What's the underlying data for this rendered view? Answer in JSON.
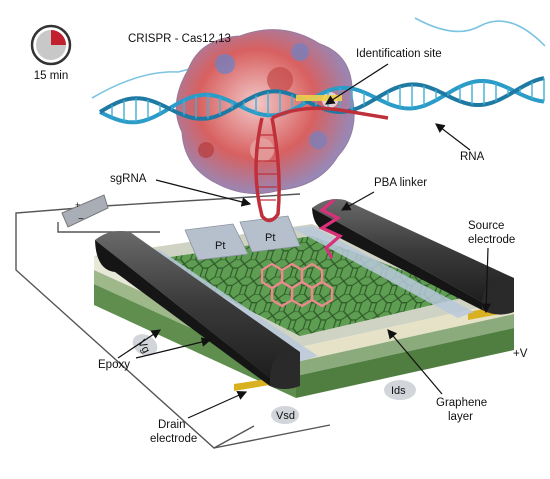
{
  "timer": {
    "label": "15 min",
    "fraction": 0.25
  },
  "labels": {
    "crispr": "CRISPR - Cas12,13",
    "identification_site": "Identification site",
    "rna": "RNA",
    "sgrna": "sgRNA",
    "pba_linker": "PBA linker",
    "source_electrode": "Source\nelectrode",
    "pt_left": "Pt",
    "pt_right": "Pt",
    "vg": "Vg",
    "plus_v": "+V",
    "epoxy": "Epoxy",
    "ids": "Ids",
    "graphene_layer": "Graphene\nlayer",
    "drain_electrode": "Drain\nelectrode",
    "vsd": "Vsd",
    "plus": "+",
    "minus": "−"
  },
  "colors": {
    "graphene": "#5e9e52",
    "graphene_dark": "#3f7a38",
    "epoxy": "#3a3a3a",
    "electrode_gold": "#d8b020",
    "protein_red": "#cc4444",
    "protein_blue": "#5570b8",
    "dna_blue": "#2b9cc8",
    "sgrna": "#c0303a",
    "linker": "#d8307a",
    "molecule": "#e88b8b"
  }
}
